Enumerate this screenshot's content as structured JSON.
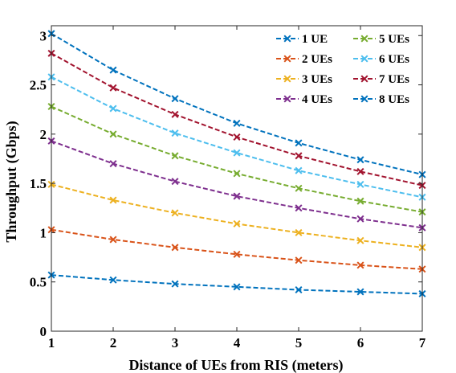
{
  "chart_data": {
    "type": "line",
    "title": "",
    "xlabel": "Distance of UEs from RIS (meters)",
    "ylabel": "Throughput (Gbps)",
    "xlim": [
      1,
      7
    ],
    "ylim": [
      0,
      3.1
    ],
    "xticks": [
      "1",
      "2",
      "3",
      "4",
      "5",
      "6",
      "7"
    ],
    "yticks": [
      "0",
      "0.5",
      "1",
      "1.5",
      "2",
      "2.5",
      "3"
    ],
    "grid": false,
    "legend_position": "top-right",
    "x": [
      1,
      2,
      3,
      4,
      5,
      6,
      7
    ],
    "series": [
      {
        "name": "1 UE",
        "color": "#0072BD",
        "values": [
          0.57,
          0.52,
          0.48,
          0.45,
          0.42,
          0.4,
          0.38
        ]
      },
      {
        "name": "2 UEs",
        "color": "#D95319",
        "values": [
          1.03,
          0.93,
          0.85,
          0.78,
          0.72,
          0.67,
          0.63
        ]
      },
      {
        "name": "3 UEs",
        "color": "#EDB120",
        "values": [
          1.49,
          1.33,
          1.2,
          1.09,
          1.0,
          0.92,
          0.85
        ]
      },
      {
        "name": "4 UEs",
        "color": "#7E2F8E",
        "values": [
          1.93,
          1.7,
          1.52,
          1.37,
          1.25,
          1.14,
          1.05
        ]
      },
      {
        "name": "5 UEs",
        "color": "#77AC30",
        "values": [
          2.28,
          2.0,
          1.78,
          1.6,
          1.45,
          1.32,
          1.21
        ]
      },
      {
        "name": "6 UEs",
        "color": "#4DBEEE",
        "values": [
          2.58,
          2.26,
          2.01,
          1.81,
          1.63,
          1.49,
          1.36
        ]
      },
      {
        "name": "7 UEs",
        "color": "#A2142F",
        "values": [
          2.82,
          2.47,
          2.2,
          1.97,
          1.78,
          1.62,
          1.48
        ]
      },
      {
        "name": "8 UEs",
        "color": "#0072BD",
        "values": [
          3.02,
          2.65,
          2.36,
          2.11,
          1.91,
          1.74,
          1.59
        ]
      }
    ]
  }
}
